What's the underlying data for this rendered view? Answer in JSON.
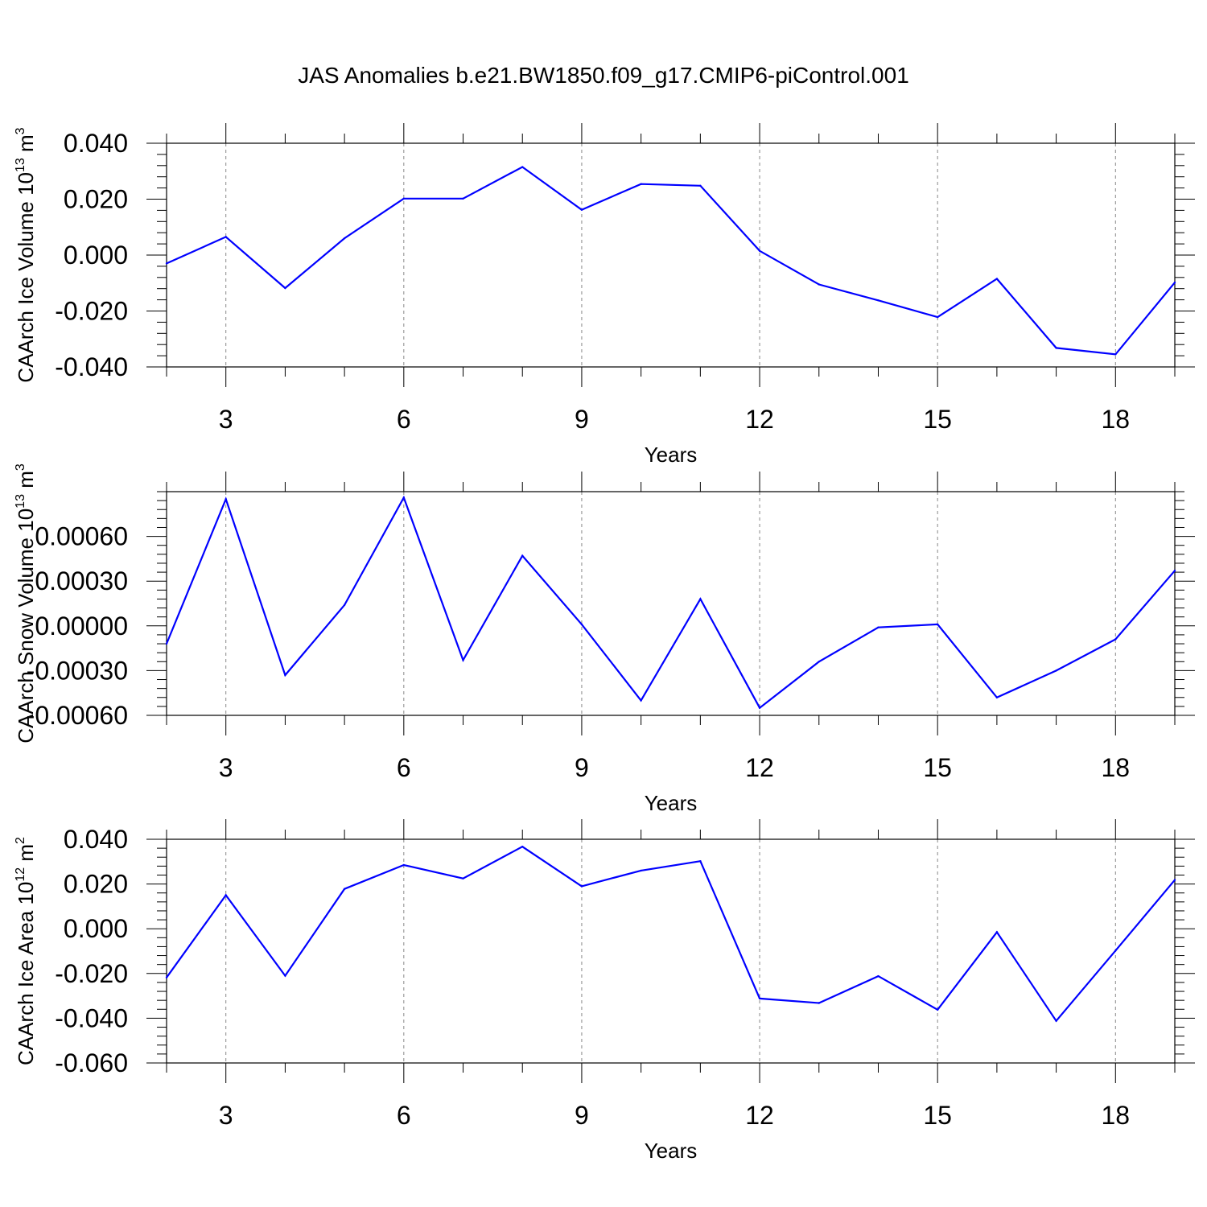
{
  "title": "JAS Anomalies b.e21.BW1850.f09_g17.CMIP6-piControl.001",
  "colors": {
    "line": "#0000ff",
    "frame": "#000000",
    "grid": "#888888"
  },
  "chart_data": [
    {
      "type": "line",
      "ylabel": "CAArch Ice Volume 10",
      "ylabel_sup": "13",
      "ylabel_unit": " m",
      "ylabel_unit_sup": "3",
      "xlabel": "Years",
      "xlim": [
        2,
        19
      ],
      "ylim": [
        -0.04,
        0.04
      ],
      "x_ticks": [
        3,
        6,
        9,
        12,
        15,
        18
      ],
      "y_ticks": [
        -0.04,
        -0.02,
        0.0,
        0.02,
        0.04
      ],
      "y_tick_labels": [
        "-0.040",
        "-0.020",
        "0.000",
        "0.020",
        "0.040"
      ],
      "grid": "dashed vertical at major x ticks",
      "x": [
        2,
        3,
        4,
        5,
        6,
        7,
        8,
        9,
        10,
        11,
        12,
        13,
        14,
        15,
        16,
        17,
        18,
        19
      ],
      "values": [
        -0.003,
        0.0065,
        -0.0118,
        0.006,
        0.0202,
        0.0202,
        0.0315,
        0.0162,
        0.0254,
        0.0248,
        0.0015,
        -0.0105,
        -0.0162,
        -0.0222,
        -0.0085,
        -0.0332,
        -0.0355,
        -0.0098
      ]
    },
    {
      "type": "line",
      "ylabel": "CAArch Snow Volume 10",
      "ylabel_sup": "13",
      "ylabel_unit": " m",
      "ylabel_unit_sup": "3",
      "xlabel": "Years",
      "xlim": [
        2,
        19
      ],
      "ylim": [
        -0.0006,
        0.0009
      ],
      "x_ticks": [
        3,
        6,
        9,
        12,
        15,
        18
      ],
      "y_ticks": [
        -0.0006,
        -0.0003,
        0.0,
        0.0003,
        0.0006
      ],
      "y_tick_labels": [
        "-0.00060",
        "-0.00030",
        "0.00000",
        "0.00030",
        "0.00060"
      ],
      "grid": "dashed vertical at major x ticks",
      "x": [
        2,
        3,
        4,
        5,
        6,
        7,
        8,
        9,
        10,
        11,
        12,
        13,
        14,
        15,
        16,
        17,
        18,
        19
      ],
      "values": [
        -0.00012,
        0.00085,
        -0.00033,
        0.00014,
        0.00086,
        -0.00023,
        0.00047,
        1e-05,
        -0.0005,
        0.00018,
        -0.00055,
        -0.00024,
        -1e-05,
        1e-05,
        -0.00048,
        -0.0003,
        -9e-05,
        0.00037
      ]
    },
    {
      "type": "line",
      "ylabel": "CAArch Ice Area 10",
      "ylabel_sup": "12",
      "ylabel_unit": " m",
      "ylabel_unit_sup": "2",
      "xlabel": "Years",
      "xlim": [
        2,
        19
      ],
      "ylim": [
        -0.06,
        0.04
      ],
      "x_ticks": [
        3,
        6,
        9,
        12,
        15,
        18
      ],
      "y_ticks": [
        -0.06,
        -0.04,
        -0.02,
        0.0,
        0.02,
        0.04
      ],
      "y_tick_labels": [
        "-0.060",
        "-0.040",
        "-0.020",
        "0.000",
        "0.020",
        "0.040"
      ],
      "grid": "dashed vertical at major x ticks",
      "x": [
        2,
        3,
        4,
        5,
        6,
        7,
        8,
        9,
        10,
        11,
        12,
        13,
        14,
        15,
        16,
        17,
        18,
        19
      ],
      "values": [
        -0.0218,
        0.015,
        -0.021,
        0.0178,
        0.0285,
        0.0225,
        0.0367,
        0.019,
        0.026,
        0.0302,
        -0.0312,
        -0.0332,
        -0.0212,
        -0.0362,
        -0.0015,
        -0.0412,
        -0.0098,
        0.0218
      ]
    }
  ]
}
